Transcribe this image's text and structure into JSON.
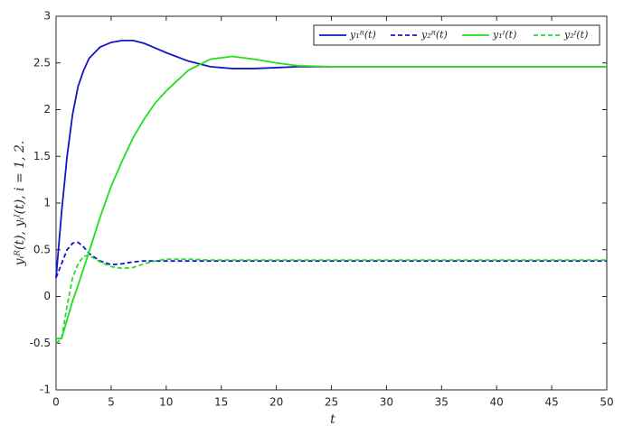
{
  "chart_data": {
    "type": "line",
    "xlabel": "t",
    "ylabel": "yᵢᴿ(t), yᵢᴵ(t), i = 1, 2.",
    "x": [
      0,
      0.5,
      1,
      1.5,
      2,
      2.5,
      3,
      4,
      5,
      6,
      7,
      8,
      9,
      10,
      12,
      14,
      16,
      18,
      20,
      22,
      25,
      30,
      35,
      40,
      45,
      50
    ],
    "series": [
      {
        "name": "y₁ᴿ(t)",
        "color": "#1414c8",
        "line_style": "solid",
        "values": [
          0.2,
          0.9,
          1.5,
          1.95,
          2.25,
          2.42,
          2.55,
          2.67,
          2.72,
          2.74,
          2.74,
          2.71,
          2.66,
          2.61,
          2.52,
          2.46,
          2.44,
          2.44,
          2.45,
          2.46,
          2.46,
          2.46,
          2.46,
          2.46,
          2.46,
          2.46
        ]
      },
      {
        "name": "y₂ᴿ(t)",
        "color": "#1414c8",
        "line_style": "dashed",
        "values": [
          0.2,
          0.35,
          0.5,
          0.57,
          0.58,
          0.53,
          0.46,
          0.38,
          0.34,
          0.35,
          0.37,
          0.38,
          0.38,
          0.38,
          0.38,
          0.38,
          0.38,
          0.38,
          0.38,
          0.38,
          0.38,
          0.38,
          0.38,
          0.38,
          0.38,
          0.38
        ]
      },
      {
        "name": "y₁ᴵ(t)",
        "color": "#22dd22",
        "line_style": "solid",
        "values": [
          -0.45,
          -0.45,
          -0.25,
          -0.05,
          0.12,
          0.3,
          0.48,
          0.85,
          1.18,
          1.45,
          1.7,
          1.9,
          2.07,
          2.2,
          2.42,
          2.54,
          2.57,
          2.54,
          2.5,
          2.47,
          2.46,
          2.46,
          2.46,
          2.46,
          2.46,
          2.46
        ]
      },
      {
        "name": "y₂ᴵ(t)",
        "color": "#22dd22",
        "line_style": "dashed",
        "values": [
          -0.5,
          -0.45,
          -0.1,
          0.2,
          0.35,
          0.43,
          0.44,
          0.37,
          0.32,
          0.3,
          0.31,
          0.35,
          0.38,
          0.4,
          0.4,
          0.39,
          0.39,
          0.39,
          0.39,
          0.39,
          0.39,
          0.39,
          0.39,
          0.39,
          0.39,
          0.39
        ]
      }
    ],
    "xlim": [
      0,
      50
    ],
    "xticks": [
      0,
      5,
      10,
      15,
      20,
      25,
      30,
      35,
      40,
      45,
      50
    ],
    "ylim": [
      -1,
      3
    ],
    "yticks": [
      -1,
      -0.5,
      0,
      0.5,
      1,
      1.5,
      2,
      2.5,
      3
    ],
    "grid": false,
    "legend": "top-right"
  }
}
